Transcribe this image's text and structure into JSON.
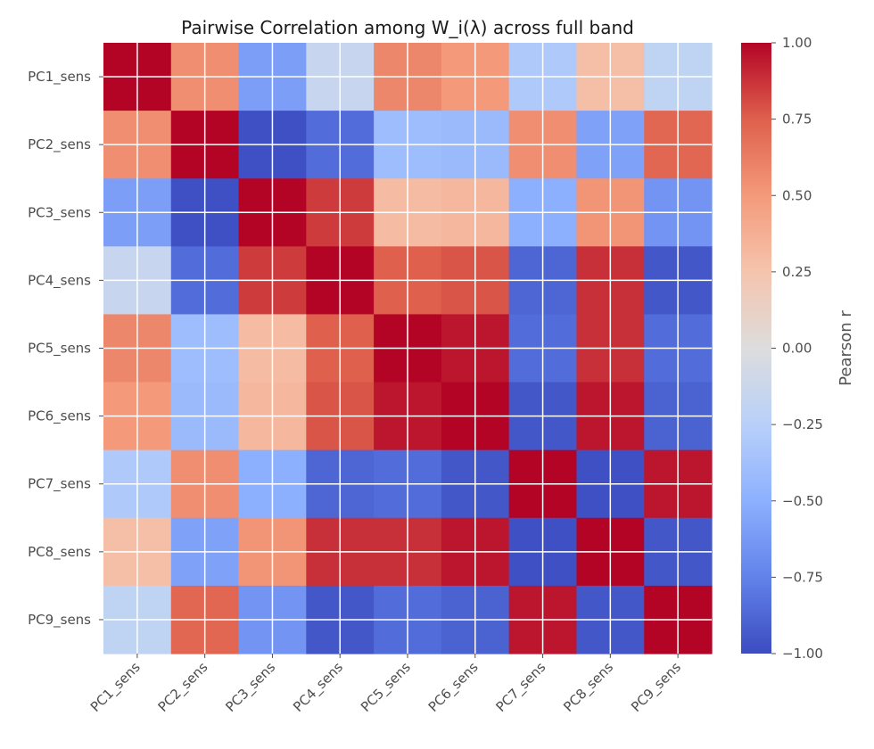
{
  "chart_data": {
    "type": "heatmap",
    "title": "Pairwise Correlation among W_i(λ) across full band",
    "xlabel": "",
    "ylabel": "",
    "rows": [
      "PC1_sens",
      "PC2_sens",
      "PC3_sens",
      "PC4_sens",
      "PC5_sens",
      "PC6_sens",
      "PC7_sens",
      "PC8_sens",
      "PC9_sens"
    ],
    "columns": [
      "PC1_sens",
      "PC2_sens",
      "PC3_sens",
      "PC4_sens",
      "PC5_sens",
      "PC6_sens",
      "PC7_sens",
      "PC8_sens",
      "PC9_sens"
    ],
    "values": [
      [
        1.0,
        0.55,
        -0.6,
        -0.15,
        0.58,
        0.5,
        -0.3,
        0.28,
        -0.2
      ],
      [
        0.55,
        1.0,
        -0.98,
        -0.85,
        -0.4,
        -0.42,
        0.55,
        -0.58,
        0.72
      ],
      [
        -0.6,
        -0.98,
        1.0,
        0.85,
        0.3,
        0.33,
        -0.5,
        0.52,
        -0.65
      ],
      [
        -0.15,
        -0.85,
        0.85,
        1.0,
        0.75,
        0.78,
        -0.88,
        0.88,
        -0.95
      ],
      [
        0.58,
        -0.4,
        0.3,
        0.75,
        1.0,
        0.95,
        -0.85,
        0.88,
        -0.85
      ],
      [
        0.5,
        -0.42,
        0.33,
        0.78,
        0.95,
        1.0,
        -0.95,
        0.95,
        -0.9
      ],
      [
        -0.3,
        0.55,
        -0.5,
        -0.88,
        -0.85,
        -0.95,
        1.0,
        -0.98,
        0.95
      ],
      [
        0.28,
        -0.58,
        0.52,
        0.88,
        0.88,
        0.95,
        -0.98,
        1.0,
        -0.95
      ],
      [
        -0.2,
        0.72,
        -0.65,
        -0.95,
        -0.85,
        -0.9,
        0.95,
        -0.95,
        1.0
      ]
    ],
    "colormap": "coolwarm",
    "vmin": -1.0,
    "vmax": 1.0,
    "grid": true,
    "colorbar": {
      "label": "Pearson r",
      "ticks": [
        1.0,
        0.75,
        0.5,
        0.25,
        0.0,
        -0.25,
        -0.5,
        -0.75,
        -1.0
      ],
      "tick_labels": [
        "1.00",
        "0.75",
        "0.50",
        "0.25",
        "0.00",
        "−0.25",
        "−0.50",
        "−0.75",
        "−1.00"
      ]
    },
    "colors": {
      "min": "#3b4cc0",
      "mid": "#dddddd",
      "max": "#b40426",
      "grid": "#ffffff",
      "text": "#4d4d4d"
    }
  }
}
